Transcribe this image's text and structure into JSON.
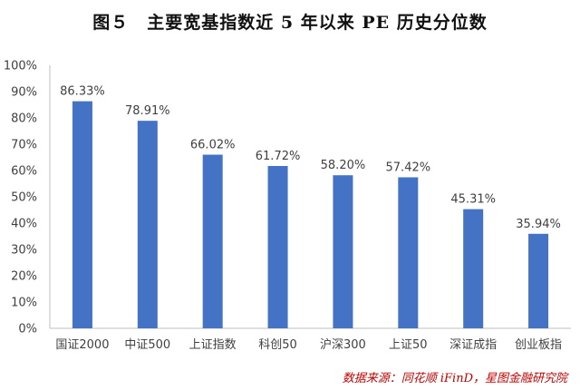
{
  "figure": {
    "title": "图５　主要宽基指数近 5 年以来 PE 历史分位数",
    "source": "数据来源：同花顺 iFinD，星图金融研究院"
  },
  "chart_data": {
    "type": "bar",
    "categories": [
      "国证2000",
      "中证500",
      "上证指数",
      "科创50",
      "沪深300",
      "上证50",
      "深证成指",
      "创业板指"
    ],
    "values": [
      86.33,
      78.91,
      66.02,
      61.72,
      58.2,
      57.42,
      45.31,
      35.94
    ],
    "data_labels": [
      "86.33%",
      "78.91%",
      "66.02%",
      "61.72%",
      "58.20%",
      "57.42%",
      "45.31%",
      "35.94%"
    ],
    "y_ticks": [
      "0%",
      "10%",
      "20%",
      "30%",
      "40%",
      "50%",
      "60%",
      "70%",
      "80%",
      "90%",
      "100%"
    ],
    "ylim": [
      0,
      100
    ],
    "grid": false,
    "legend": "none",
    "bar_color": "#4472c4"
  }
}
